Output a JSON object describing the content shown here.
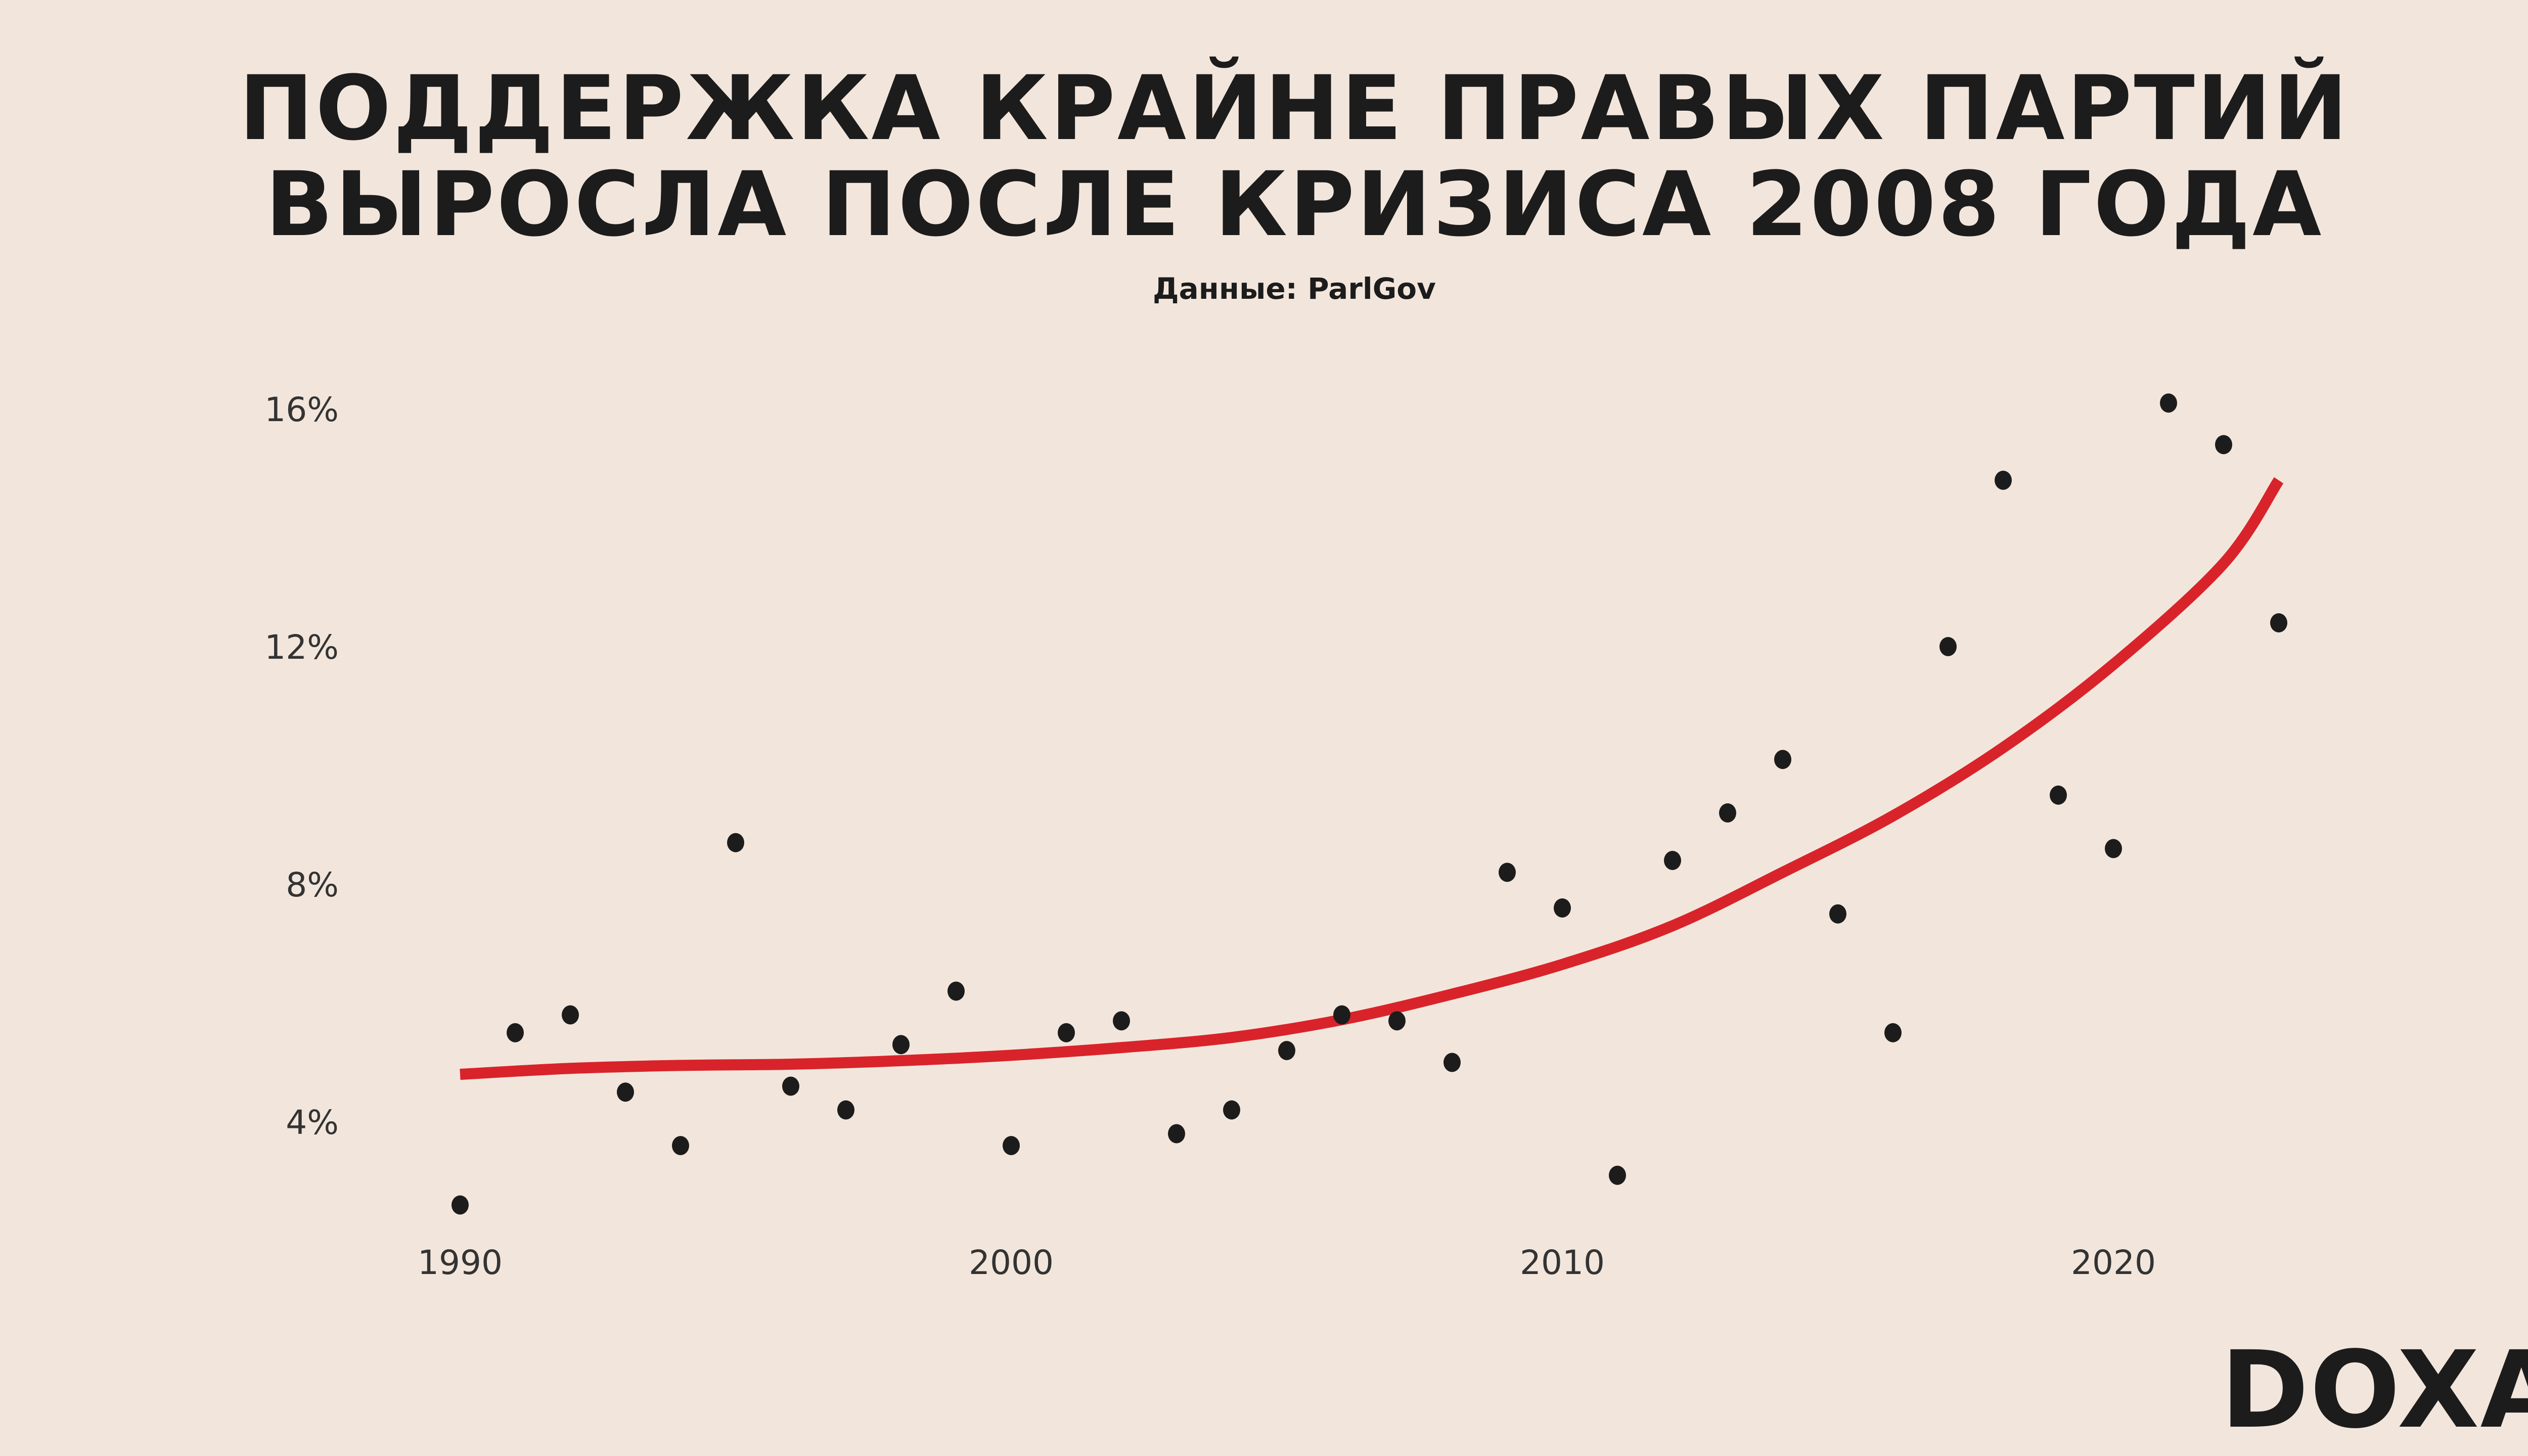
{
  "header": {
    "title_line1": "ПОДДЕРЖКА КРАЙНЕ ПРАВЫХ ПАРТИЙ",
    "title_line2": "ВЫРОСЛА ПОСЛЕ КРИЗИСА 2008 ГОДА",
    "source": "Данные: ParlGov"
  },
  "brand": {
    "logo_text": "DOXA"
  },
  "colors": {
    "background": "#f2e6dc",
    "points": "#1c1c1c",
    "trend": "#d9232a",
    "text": "#1c1c1c"
  },
  "chart_data": {
    "type": "scatter",
    "title": "ПОДДЕРЖКА КРАЙНЕ ПРАВЫХ ПАРТИЙ ВЫРОСЛА ПОСЛЕ КРИЗИСА 2008 ГОДА",
    "subtitle": "Данные: ParlGov",
    "xlabel": "",
    "ylabel": "",
    "xlim": [
      1989.5,
      2024.2
    ],
    "ylim": [
      2.2,
      16.5
    ],
    "x_ticks": [
      1990,
      2000,
      2010,
      2020
    ],
    "x_tick_labels": [
      "1990",
      "2000",
      "2010",
      "2020"
    ],
    "y_ticks": [
      4,
      8,
      12,
      16
    ],
    "y_tick_labels": [
      "4%",
      "8%",
      "12%",
      "16%"
    ],
    "grid": false,
    "legend": "none",
    "series": [
      {
        "kind": "points",
        "x": [
          1990,
          1991,
          1992,
          1993,
          1994,
          1995,
          1996,
          1997,
          1998,
          1999,
          2000,
          2001,
          2002,
          2003,
          2004,
          2005,
          2006,
          2007,
          2008,
          2009,
          2010,
          2011,
          2012,
          2013,
          2014,
          2015,
          2016,
          2017,
          2018,
          2019,
          2020,
          2021,
          2022,
          2023
        ],
        "y": [
          2.6,
          5.5,
          5.8,
          4.5,
          3.6,
          8.7,
          4.6,
          4.2,
          5.3,
          6.2,
          3.6,
          5.5,
          5.7,
          3.8,
          4.2,
          5.2,
          5.8,
          5.7,
          5.0,
          8.2,
          7.6,
          3.1,
          8.4,
          9.2,
          10.1,
          7.5,
          5.5,
          12.0,
          14.8,
          9.5,
          8.6,
          16.1,
          15.4,
          12.4
        ]
      },
      {
        "kind": "trend",
        "x": [
          1990,
          1992,
          1994,
          1996,
          1998,
          2000,
          2002,
          2004,
          2006,
          2008,
          2010,
          2012,
          2014,
          2016,
          2018,
          2020,
          2022,
          2023
        ],
        "y": [
          4.8,
          4.9,
          4.95,
          4.97,
          5.03,
          5.12,
          5.25,
          5.42,
          5.72,
          6.15,
          6.65,
          7.3,
          8.2,
          9.15,
          10.3,
          11.7,
          13.4,
          14.8
        ]
      }
    ]
  }
}
